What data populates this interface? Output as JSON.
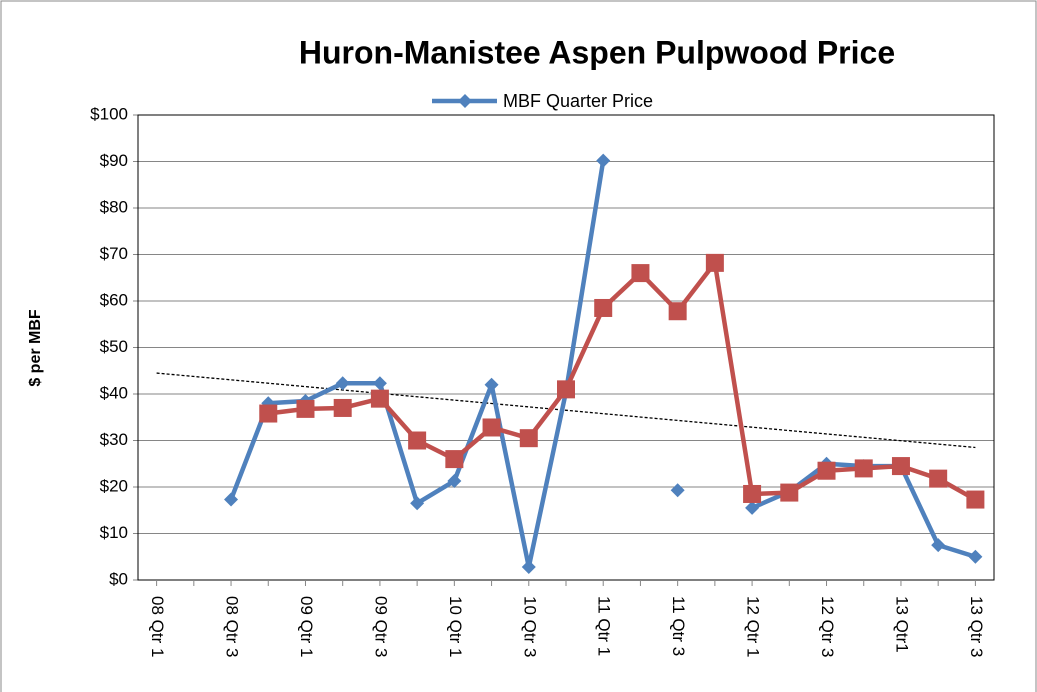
{
  "chart_data": {
    "type": "line",
    "title": "Huron-Manistee Aspen Pulpwood Price",
    "y_label": "$ per MBF",
    "categories": [
      "08 Qtr 1",
      null,
      "08 Qtr 3",
      null,
      "09 Qtr 1",
      null,
      "09 Qtr 3",
      null,
      "10 Qtr 1",
      null,
      "10 Qtr 3",
      null,
      "11 Qtr 1",
      null,
      "11 Qtr 3",
      null,
      "12 Qtr 1",
      null,
      "12 Qtr 3",
      null,
      "13 Qtr1",
      null,
      "13 Qtr 3"
    ],
    "series": [
      {
        "name": "MBF Quarter Price",
        "color": "#4f81bd",
        "marker": "diamond",
        "values": [
          null,
          null,
          17.3,
          38,
          38.5,
          42.3,
          42.3,
          16.5,
          21.3,
          42,
          2.8,
          40.5,
          90.2,
          null,
          19.3,
          null,
          15.5,
          19,
          25,
          24.5,
          24.5,
          7.5,
          5
        ]
      },
      {
        "color": "#c0504d",
        "marker": "square",
        "values": [
          null,
          null,
          null,
          35.8,
          36.8,
          37,
          39,
          30,
          26,
          32.8,
          30.5,
          41,
          58.5,
          66,
          57.8,
          68.2,
          18.5,
          18.8,
          23.5,
          24,
          24.5,
          21.8,
          17.3
        ]
      }
    ],
    "trendline": {
      "color": "#000000",
      "values": [
        44.5,
        28.5
      ]
    },
    "ylim": [
      0,
      100
    ],
    "yticks": [
      {
        "value": 0,
        "label": "$0"
      },
      {
        "value": 10,
        "label": "$10"
      },
      {
        "value": 20,
        "label": "$20"
      },
      {
        "value": 30,
        "label": "$30"
      },
      {
        "value": 40,
        "label": "$40"
      },
      {
        "value": 50,
        "label": "$50"
      },
      {
        "value": 60,
        "label": "$60"
      },
      {
        "value": 70,
        "label": "$70"
      },
      {
        "value": 80,
        "label": "$80"
      },
      {
        "value": 90,
        "label": "$90"
      },
      {
        "value": 100,
        "label": "$100"
      }
    ],
    "grid": true,
    "legend": "top"
  }
}
